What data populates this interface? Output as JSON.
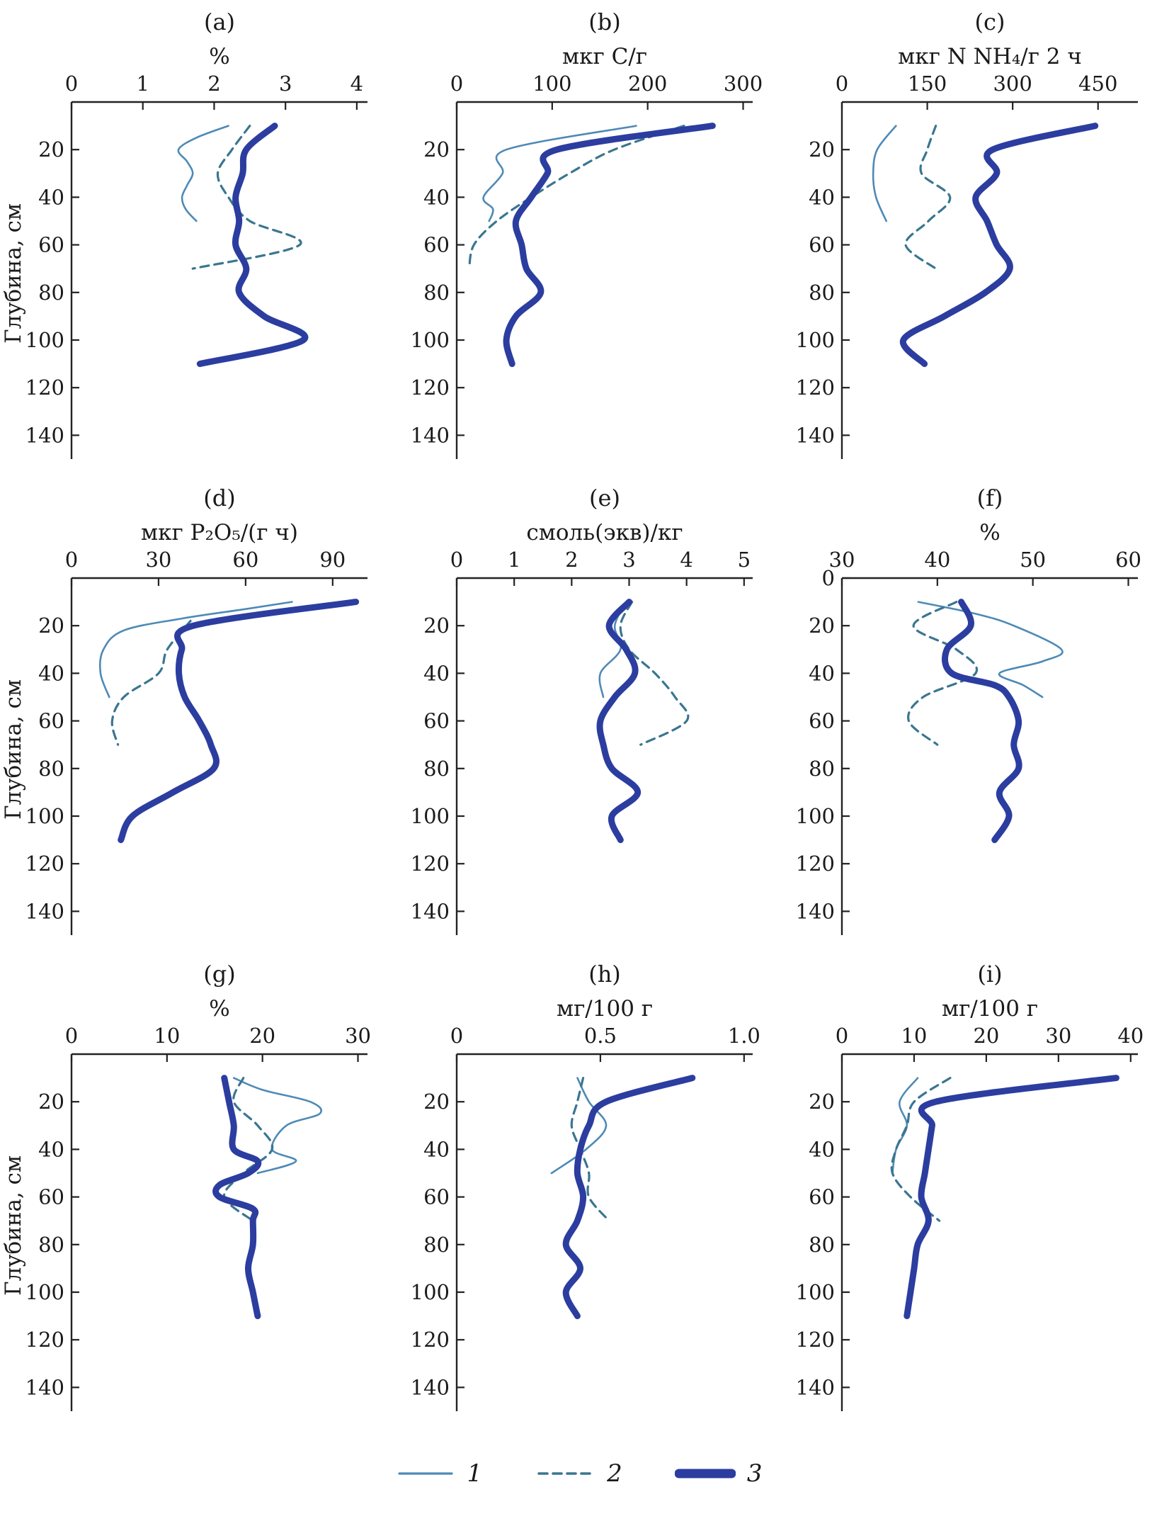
{
  "figure": {
    "ylabel": "Глубина, см",
    "colors": {
      "s1": "#4e8ab6",
      "s2": "#3a7690",
      "s3": "#2c3da0"
    },
    "legend": [
      {
        "label": "1",
        "style": "thin-solid"
      },
      {
        "label": "2",
        "style": "dashed"
      },
      {
        "label": "3",
        "style": "thick-solid"
      }
    ]
  },
  "chart_data": [
    {
      "type": "line",
      "id": "a",
      "panel_label": "(a)",
      "xlabel": "%",
      "xlim": [
        0,
        4.15
      ],
      "xtick_values": [
        0,
        1,
        2,
        3,
        4
      ],
      "xtick_labels": [
        "0",
        "1",
        "2",
        "3",
        "4"
      ],
      "ylim": [
        0,
        150
      ],
      "ytick_values": [
        20,
        40,
        60,
        80,
        100,
        120,
        140
      ],
      "show_ylabel": true,
      "series": [
        {
          "name": "1",
          "depths": [
            10,
            15,
            20,
            25,
            30,
            35,
            40,
            45,
            50
          ],
          "values": [
            2.2,
            1.75,
            1.5,
            1.62,
            1.7,
            1.62,
            1.55,
            1.6,
            1.75
          ]
        },
        {
          "name": "2",
          "depths": [
            10,
            20,
            30,
            40,
            50,
            60,
            70
          ],
          "values": [
            2.5,
            2.25,
            2.05,
            2.2,
            2.5,
            3.2,
            1.7
          ]
        },
        {
          "name": "3",
          "depths": [
            10,
            20,
            30,
            40,
            50,
            60,
            70,
            80,
            90,
            100,
            110
          ],
          "values": [
            2.85,
            2.45,
            2.4,
            2.3,
            2.35,
            2.3,
            2.45,
            2.35,
            2.7,
            3.25,
            1.8
          ]
        }
      ]
    },
    {
      "type": "line",
      "id": "b",
      "panel_label": "(b)",
      "xlabel": "мкг С/г",
      "xlim": [
        0,
        310
      ],
      "xtick_values": [
        0,
        100,
        200,
        300
      ],
      "xtick_labels": [
        "0",
        "100",
        "200",
        "300"
      ],
      "ylim": [
        0,
        150
      ],
      "ytick_values": [
        20,
        40,
        60,
        80,
        100,
        120,
        140
      ],
      "show_ylabel": false,
      "series": [
        {
          "name": "1",
          "depths": [
            10,
            20,
            30,
            40,
            45,
            50
          ],
          "values": [
            188,
            52,
            48,
            28,
            38,
            34
          ]
        },
        {
          "name": "2",
          "depths": [
            10,
            20,
            30,
            40,
            50,
            60,
            70
          ],
          "values": [
            238,
            165,
            118,
            78,
            42,
            18,
            13
          ]
        },
        {
          "name": "3",
          "depths": [
            10,
            20,
            30,
            40,
            50,
            60,
            70,
            80,
            90,
            100,
            110
          ],
          "values": [
            268,
            105,
            95,
            78,
            62,
            68,
            73,
            88,
            62,
            52,
            58
          ]
        }
      ]
    },
    {
      "type": "line",
      "id": "c",
      "panel_label": "(c)",
      "xlabel": "мкг N NH₄/г 2 ч",
      "xlim": [
        0,
        520
      ],
      "xtick_values": [
        0,
        150,
        300,
        450
      ],
      "xtick_labels": [
        "0",
        "150",
        "300",
        "450"
      ],
      "ylim": [
        0,
        150
      ],
      "ytick_values": [
        20,
        40,
        60,
        80,
        100,
        120,
        140
      ],
      "show_ylabel": false,
      "series": [
        {
          "name": "1",
          "depths": [
            10,
            20,
            30,
            40,
            50
          ],
          "values": [
            95,
            62,
            55,
            60,
            78
          ]
        },
        {
          "name": "2",
          "depths": [
            10,
            20,
            30,
            40,
            50,
            60,
            70
          ],
          "values": [
            165,
            150,
            140,
            190,
            152,
            112,
            165
          ]
        },
        {
          "name": "3",
          "depths": [
            10,
            20,
            30,
            40,
            50,
            60,
            70,
            80,
            90,
            100,
            110
          ],
          "values": [
            445,
            265,
            272,
            235,
            255,
            272,
            295,
            252,
            180,
            108,
            145
          ]
        }
      ]
    },
    {
      "type": "line",
      "id": "d",
      "panel_label": "(d)",
      "xlabel": "мкг P₂O₅/(г ч)",
      "xlim": [
        0,
        102
      ],
      "xtick_values": [
        0,
        30,
        60,
        90
      ],
      "xtick_labels": [
        "0",
        "30",
        "60",
        "90"
      ],
      "ylim": [
        0,
        150
      ],
      "ytick_values": [
        20,
        40,
        60,
        80,
        100,
        120,
        140
      ],
      "show_ylabel": true,
      "series": [
        {
          "name": "1",
          "depths": [
            10,
            13,
            17,
            22,
            30,
            40,
            50
          ],
          "values": [
            76,
            60,
            38,
            18,
            11,
            10,
            13
          ]
        },
        {
          "name": "2",
          "depths": [
            18,
            30,
            40,
            50,
            60,
            70
          ],
          "values": [
            41,
            33,
            30,
            18,
            14,
            16
          ]
        },
        {
          "name": "3",
          "depths": [
            10,
            20,
            30,
            40,
            50,
            60,
            70,
            80,
            90,
            100,
            110
          ],
          "values": [
            98,
            42,
            38,
            37,
            39,
            44,
            48,
            49,
            35,
            21,
            17
          ]
        }
      ]
    },
    {
      "type": "line",
      "id": "e",
      "panel_label": "(e)",
      "xlabel": "смоль(экв)/кг",
      "xlim": [
        0,
        5.15
      ],
      "xtick_values": [
        0,
        1,
        2,
        3,
        4,
        5
      ],
      "xtick_labels": [
        "0",
        "1",
        "2",
        "3",
        "4",
        "5"
      ],
      "ylim": [
        0,
        150
      ],
      "ytick_values": [
        20,
        40,
        60,
        80,
        100,
        120,
        140
      ],
      "show_ylabel": false,
      "series": [
        {
          "name": "1",
          "depths": [
            10,
            20,
            30,
            40,
            50
          ],
          "values": [
            2.95,
            2.75,
            2.85,
            2.5,
            2.55
          ]
        },
        {
          "name": "2",
          "depths": [
            10,
            20,
            30,
            40,
            50,
            60,
            70
          ],
          "values": [
            3.05,
            2.85,
            3.0,
            3.45,
            3.8,
            4.0,
            3.2
          ]
        },
        {
          "name": "3",
          "depths": [
            10,
            20,
            30,
            40,
            50,
            60,
            70,
            80,
            90,
            100,
            110
          ],
          "values": [
            3.0,
            2.65,
            2.95,
            3.1,
            2.75,
            2.5,
            2.55,
            2.7,
            3.15,
            2.7,
            2.85
          ]
        }
      ]
    },
    {
      "type": "line",
      "id": "f",
      "panel_label": "(f)",
      "xlabel": "%",
      "xlim": [
        30,
        61
      ],
      "xtick_values": [
        30,
        40,
        50,
        60
      ],
      "xtick_labels": [
        "30",
        "40",
        "50",
        "60"
      ],
      "ylim": [
        0,
        150
      ],
      "ytick_values": [
        0,
        20,
        40,
        60,
        80,
        100,
        120,
        140
      ],
      "show_ylabel": false,
      "series": [
        {
          "name": "1",
          "depths": [
            10,
            15,
            20,
            30,
            35,
            40,
            45,
            50
          ],
          "values": [
            38,
            44,
            48,
            53,
            51,
            46.5,
            49,
            51
          ]
        },
        {
          "name": "2",
          "depths": [
            10,
            20,
            30,
            40,
            50,
            60,
            70
          ],
          "values": [
            42,
            37.5,
            42,
            44,
            38.5,
            37,
            40
          ]
        },
        {
          "name": "3",
          "depths": [
            10,
            20,
            30,
            40,
            45,
            50,
            60,
            70,
            80,
            90,
            100,
            110
          ],
          "values": [
            42.5,
            43.5,
            41,
            41.5,
            46,
            47.5,
            48.5,
            48,
            48.5,
            46.5,
            47.5,
            46
          ]
        }
      ]
    },
    {
      "type": "line",
      "id": "g",
      "panel_label": "(g)",
      "xlabel": "%",
      "xlim": [
        0,
        31
      ],
      "xtick_values": [
        0,
        10,
        20,
        30
      ],
      "xtick_labels": [
        "0",
        "10",
        "20",
        "30"
      ],
      "ylim": [
        0,
        150
      ],
      "ytick_values": [
        20,
        40,
        60,
        80,
        100,
        120,
        140
      ],
      "show_ylabel": true,
      "series": [
        {
          "name": "1",
          "depths": [
            10,
            15,
            20,
            25,
            30,
            40,
            45,
            50
          ],
          "values": [
            17,
            20,
            25,
            26,
            22.5,
            21,
            23.5,
            19.5
          ]
        },
        {
          "name": "2",
          "depths": [
            10,
            20,
            30,
            40,
            50,
            60,
            70
          ],
          "values": [
            18,
            17,
            19.5,
            21,
            18,
            16,
            19
          ]
        },
        {
          "name": "3",
          "depths": [
            10,
            20,
            30,
            40,
            45,
            50,
            55,
            60,
            65,
            70,
            80,
            90,
            100,
            110
          ],
          "values": [
            16,
            16.5,
            17,
            17,
            19.5,
            18.5,
            15.5,
            15.5,
            19,
            19,
            19,
            18.5,
            19,
            19.5
          ]
        }
      ]
    },
    {
      "type": "line",
      "id": "h",
      "panel_label": "(h)",
      "xlabel": "мг/100 г",
      "xlim": [
        0,
        1.03
      ],
      "xtick_values": [
        0,
        0.5,
        1.0
      ],
      "xtick_labels": [
        "0",
        "0.5",
        "1.0"
      ],
      "ylim": [
        0,
        150
      ],
      "ytick_values": [
        20,
        40,
        60,
        80,
        100,
        120,
        140
      ],
      "show_ylabel": false,
      "series": [
        {
          "name": "1",
          "depths": [
            10,
            20,
            30,
            40,
            50
          ],
          "values": [
            0.42,
            0.46,
            0.52,
            0.45,
            0.33
          ]
        },
        {
          "name": "2",
          "depths": [
            10,
            20,
            30,
            40,
            50,
            60,
            70
          ],
          "values": [
            0.44,
            0.42,
            0.4,
            0.43,
            0.46,
            0.46,
            0.53
          ]
        },
        {
          "name": "3",
          "depths": [
            10,
            20,
            30,
            40,
            50,
            60,
            70,
            80,
            90,
            100,
            110
          ],
          "values": [
            0.82,
            0.52,
            0.46,
            0.43,
            0.42,
            0.44,
            0.42,
            0.38,
            0.43,
            0.38,
            0.42
          ]
        }
      ]
    },
    {
      "type": "line",
      "id": "i",
      "panel_label": "(i)",
      "xlabel": "мг/100 г",
      "xlim": [
        0,
        41
      ],
      "xtick_values": [
        0,
        10,
        20,
        30,
        40
      ],
      "xtick_labels": [
        "0",
        "10",
        "20",
        "30",
        "40"
      ],
      "ylim": [
        0,
        150
      ],
      "ytick_values": [
        20,
        40,
        60,
        80,
        100,
        120,
        140
      ],
      "show_ylabel": false,
      "series": [
        {
          "name": "1",
          "depths": [
            10,
            20,
            30,
            40,
            50
          ],
          "values": [
            10.5,
            8,
            9,
            7.5,
            7
          ]
        },
        {
          "name": "2",
          "depths": [
            10,
            20,
            30,
            40,
            50,
            60,
            70
          ],
          "values": [
            15,
            10,
            9,
            7.5,
            7,
            9.5,
            13.5
          ]
        },
        {
          "name": "3",
          "depths": [
            10,
            20,
            30,
            40,
            50,
            60,
            70,
            80,
            90,
            100,
            110
          ],
          "values": [
            38,
            13,
            12.5,
            12,
            11.5,
            11,
            12,
            10.5,
            10,
            9.5,
            9
          ]
        }
      ]
    }
  ]
}
